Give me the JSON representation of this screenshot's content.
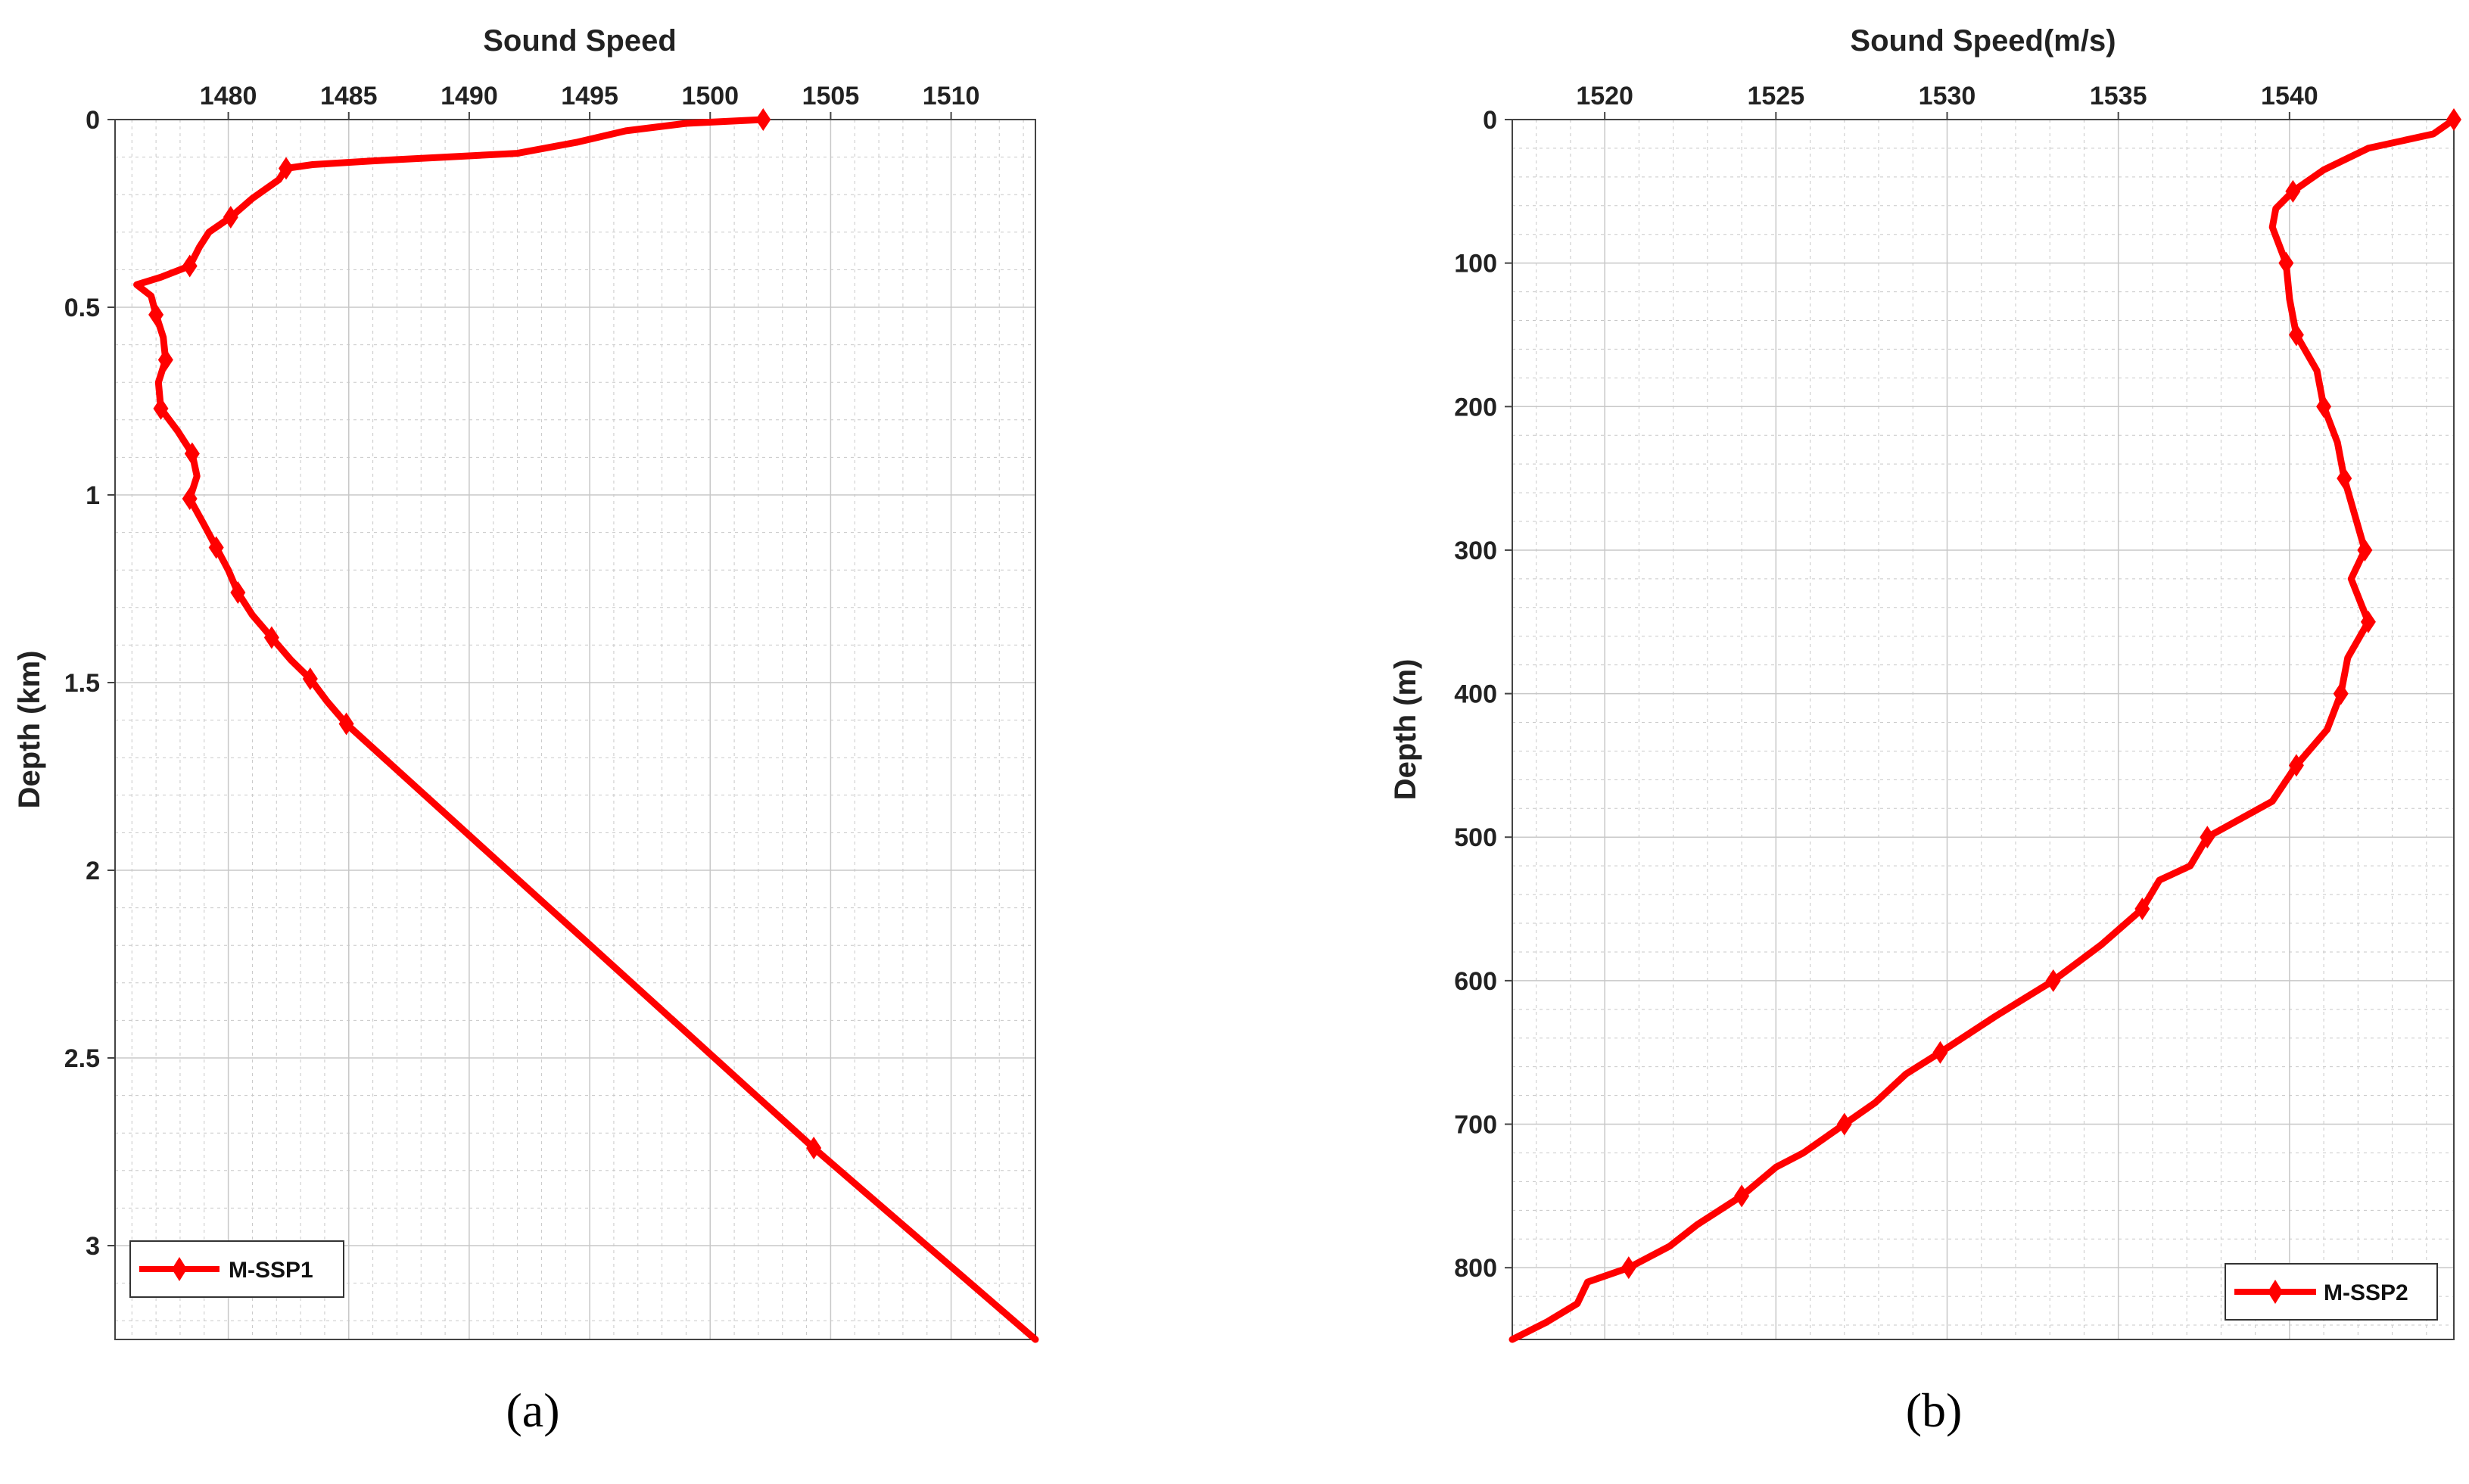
{
  "figure": {
    "panel_labels": [
      "(a)",
      "(b)"
    ]
  },
  "chart_data": [
    {
      "type": "line",
      "title": "",
      "xlabel": "Sound Speed",
      "ylabel": "Depth (km)",
      "xlim": [
        1475.3,
        1513.5
      ],
      "ylim": [
        0,
        3.25
      ],
      "x_ticks": [
        1480,
        1485,
        1490,
        1495,
        1500,
        1505,
        1510
      ],
      "y_ticks": [
        0,
        0.5,
        1,
        1.5,
        2,
        2.5,
        3
      ],
      "x_tick_labels": [
        "1480",
        "1485",
        "1490",
        "1495",
        "1500",
        "1505",
        "1510"
      ],
      "y_tick_labels": [
        "0",
        "0.5",
        "1",
        "1.5",
        "2",
        "2.5",
        "3"
      ],
      "x_axis_position": "top",
      "y_reversed": true,
      "grid": true,
      "legend_position": "bottom-left",
      "series": [
        {
          "name": "M-SSP1",
          "color": "#ff0000",
          "marker": "diamond",
          "points": [
            [
              1502.2,
              0.0
            ],
            [
              1499.0,
              0.01
            ],
            [
              1496.5,
              0.03
            ],
            [
              1494.5,
              0.06
            ],
            [
              1492.0,
              0.09
            ],
            [
              1489.0,
              0.1
            ],
            [
              1486.0,
              0.11
            ],
            [
              1483.5,
              0.12
            ],
            [
              1482.4,
              0.13
            ],
            [
              1482.1,
              0.16
            ],
            [
              1481.0,
              0.21
            ],
            [
              1480.1,
              0.26
            ],
            [
              1479.2,
              0.3
            ],
            [
              1478.8,
              0.34
            ],
            [
              1478.4,
              0.39
            ],
            [
              1477.2,
              0.42
            ],
            [
              1476.2,
              0.44
            ],
            [
              1476.8,
              0.47
            ],
            [
              1477.0,
              0.52
            ],
            [
              1477.3,
              0.58
            ],
            [
              1477.4,
              0.64
            ],
            [
              1477.1,
              0.7
            ],
            [
              1477.2,
              0.77
            ],
            [
              1477.9,
              0.83
            ],
            [
              1478.5,
              0.89
            ],
            [
              1478.7,
              0.95
            ],
            [
              1478.4,
              1.01
            ],
            [
              1479.0,
              1.08
            ],
            [
              1479.5,
              1.14
            ],
            [
              1480.0,
              1.2
            ],
            [
              1480.4,
              1.26
            ],
            [
              1481.0,
              1.32
            ],
            [
              1481.8,
              1.38
            ],
            [
              1482.6,
              1.44
            ],
            [
              1483.4,
              1.49
            ],
            [
              1484.1,
              1.55
            ],
            [
              1484.9,
              1.61
            ],
            [
              1504.3,
              2.74
            ],
            [
              1513.5,
              3.25
            ]
          ],
          "marker_points": [
            [
              1502.2,
              0.0
            ],
            [
              1482.4,
              0.13
            ],
            [
              1480.1,
              0.26
            ],
            [
              1478.4,
              0.39
            ],
            [
              1477.0,
              0.52
            ],
            [
              1477.4,
              0.64
            ],
            [
              1477.2,
              0.77
            ],
            [
              1478.5,
              0.89
            ],
            [
              1478.4,
              1.01
            ],
            [
              1479.5,
              1.14
            ],
            [
              1480.4,
              1.26
            ],
            [
              1481.8,
              1.38
            ],
            [
              1483.4,
              1.49
            ],
            [
              1484.9,
              1.61
            ],
            [
              1504.3,
              2.74
            ]
          ]
        }
      ]
    },
    {
      "type": "line",
      "title": "",
      "xlabel": "Sound Speed(m/s)",
      "ylabel": "Depth (m)",
      "xlim": [
        1517.3,
        1544.8
      ],
      "ylim": [
        0,
        850
      ],
      "x_ticks": [
        1520,
        1525,
        1530,
        1535,
        1540
      ],
      "y_ticks": [
        0,
        100,
        200,
        300,
        400,
        500,
        600,
        700,
        800
      ],
      "x_tick_labels": [
        "1520",
        "1525",
        "1530",
        "1535",
        "1540"
      ],
      "y_tick_labels": [
        "0",
        "100",
        "200",
        "300",
        "400",
        "500",
        "600",
        "700",
        "800"
      ],
      "x_axis_position": "top",
      "y_reversed": true,
      "grid": true,
      "legend_position": "bottom-right",
      "series": [
        {
          "name": "M-SSP2",
          "color": "#ff0000",
          "marker": "diamond",
          "points": [
            [
              1544.8,
              0
            ],
            [
              1544.2,
              10
            ],
            [
              1542.3,
              20
            ],
            [
              1541.0,
              35
            ],
            [
              1540.1,
              50
            ],
            [
              1539.6,
              62
            ],
            [
              1539.5,
              75
            ],
            [
              1539.9,
              100
            ],
            [
              1540.0,
              125
            ],
            [
              1540.2,
              150
            ],
            [
              1540.8,
              175
            ],
            [
              1541.0,
              200
            ],
            [
              1541.4,
              225
            ],
            [
              1541.6,
              250
            ],
            [
              1541.9,
              275
            ],
            [
              1542.2,
              300
            ],
            [
              1541.8,
              320
            ],
            [
              1542.3,
              350
            ],
            [
              1541.7,
              375
            ],
            [
              1541.5,
              400
            ],
            [
              1541.1,
              425
            ],
            [
              1540.2,
              450
            ],
            [
              1539.5,
              475
            ],
            [
              1537.6,
              500
            ],
            [
              1537.1,
              520
            ],
            [
              1536.2,
              530
            ],
            [
              1535.7,
              550
            ],
            [
              1534.5,
              575
            ],
            [
              1533.1,
              600
            ],
            [
              1531.4,
              625
            ],
            [
              1529.8,
              650
            ],
            [
              1528.8,
              665
            ],
            [
              1527.9,
              685
            ],
            [
              1527.0,
              700
            ],
            [
              1525.8,
              720
            ],
            [
              1525.0,
              730
            ],
            [
              1524.0,
              750
            ],
            [
              1522.7,
              770
            ],
            [
              1521.9,
              785
            ],
            [
              1520.7,
              800
            ],
            [
              1519.5,
              810
            ],
            [
              1519.2,
              825
            ],
            [
              1518.3,
              838
            ],
            [
              1517.3,
              850
            ]
          ],
          "marker_points": [
            [
              1544.8,
              0
            ],
            [
              1540.1,
              50
            ],
            [
              1539.9,
              100
            ],
            [
              1540.2,
              150
            ],
            [
              1541.0,
              200
            ],
            [
              1541.6,
              250
            ],
            [
              1542.2,
              300
            ],
            [
              1542.3,
              350
            ],
            [
              1541.5,
              400
            ],
            [
              1540.2,
              450
            ],
            [
              1537.6,
              500
            ],
            [
              1535.7,
              550
            ],
            [
              1533.1,
              600
            ],
            [
              1529.8,
              650
            ],
            [
              1527.0,
              700
            ],
            [
              1524.0,
              750
            ],
            [
              1520.7,
              800
            ]
          ]
        }
      ]
    }
  ]
}
